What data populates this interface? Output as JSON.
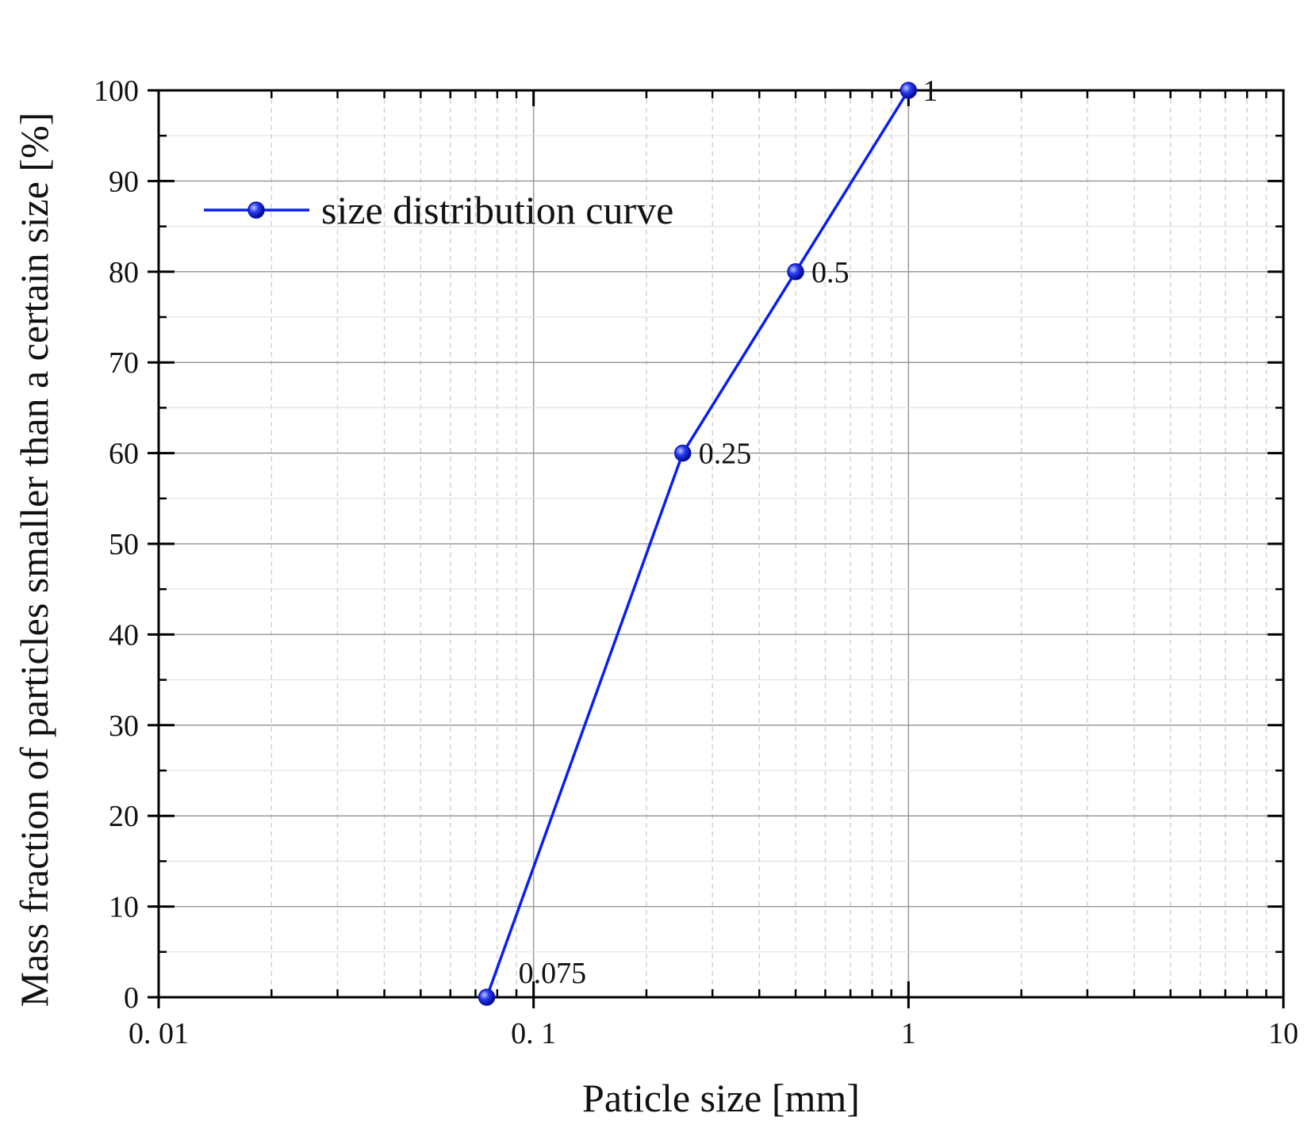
{
  "chart_data": {
    "type": "line",
    "xlabel": "Paticle size [mm]",
    "ylabel": "Mass fraction of particles smaller than a certain size [%]",
    "x_scale": "log",
    "xlim": [
      0.01,
      10
    ],
    "ylim": [
      0,
      100
    ],
    "x_ticks": [
      {
        "value": 0.01,
        "label": "0. 01"
      },
      {
        "value": 0.1,
        "label": "0. 1"
      },
      {
        "value": 1,
        "label": "1"
      },
      {
        "value": 10,
        "label": "10"
      }
    ],
    "y_ticks": [
      {
        "value": 0,
        "label": "0"
      },
      {
        "value": 10,
        "label": "10"
      },
      {
        "value": 20,
        "label": "20"
      },
      {
        "value": 30,
        "label": "30"
      },
      {
        "value": 40,
        "label": "40"
      },
      {
        "value": 50,
        "label": "50"
      },
      {
        "value": 60,
        "label": "60"
      },
      {
        "value": 70,
        "label": "70"
      },
      {
        "value": 80,
        "label": "80"
      },
      {
        "value": 90,
        "label": "90"
      },
      {
        "value": 100,
        "label": "100"
      }
    ],
    "grid": true,
    "legend_position": "top-left",
    "series": [
      {
        "name": "size distribution curve",
        "color": "#0a1ff0",
        "x": [
          0.075,
          0.25,
          0.5,
          1
        ],
        "y": [
          0,
          60,
          80,
          100
        ],
        "point_labels": [
          "0.075",
          "0.25",
          "0.5",
          "1"
        ]
      }
    ]
  }
}
